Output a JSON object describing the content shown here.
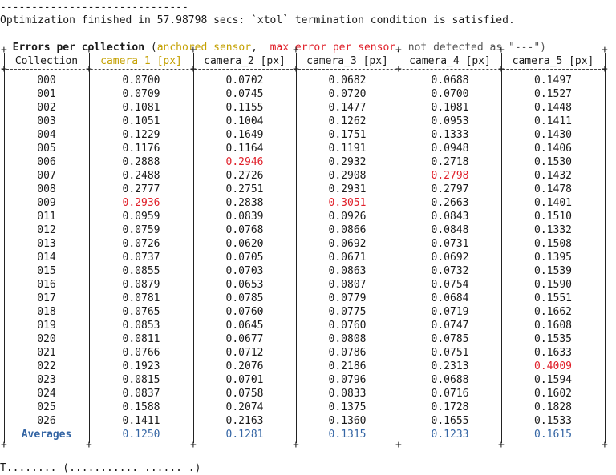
{
  "output": {
    "separator": "------------------------------",
    "status_line": "Optimization finished in 57.98798 secs: `xtol` termination condition is satisfied.",
    "legend": {
      "title": "Errors per collection",
      "open": " (",
      "anchored": "anchored sensor",
      "comma1": ",  ",
      "max_error": "max error per sensor",
      "comma2": ", ",
      "not_detected": "not detected as \"---\")"
    },
    "footer_partial": "T........ (........... ...... .)"
  },
  "table": {
    "columns": [
      "Collection",
      "camera_1 [px]",
      "camera_2 [px]",
      "camera_3 [px]",
      "camera_4 [px]",
      "camera_5 [px]"
    ],
    "anchored_column": 1,
    "rows": [
      {
        "id": "000",
        "v": [
          "0.0700",
          "0.0702",
          "0.0682",
          "0.0688",
          "0.1497"
        ],
        "max": []
      },
      {
        "id": "001",
        "v": [
          "0.0709",
          "0.0745",
          "0.0720",
          "0.0700",
          "0.1527"
        ],
        "max": []
      },
      {
        "id": "002",
        "v": [
          "0.1081",
          "0.1155",
          "0.1477",
          "0.1081",
          "0.1448"
        ],
        "max": []
      },
      {
        "id": "003",
        "v": [
          "0.1051",
          "0.1004",
          "0.1262",
          "0.0953",
          "0.1411"
        ],
        "max": []
      },
      {
        "id": "004",
        "v": [
          "0.1229",
          "0.1649",
          "0.1751",
          "0.1333",
          "0.1430"
        ],
        "max": []
      },
      {
        "id": "005",
        "v": [
          "0.1176",
          "0.1164",
          "0.1191",
          "0.0948",
          "0.1406"
        ],
        "max": []
      },
      {
        "id": "006",
        "v": [
          "0.2888",
          "0.2946",
          "0.2932",
          "0.2718",
          "0.1530"
        ],
        "max": [
          1
        ]
      },
      {
        "id": "007",
        "v": [
          "0.2488",
          "0.2726",
          "0.2908",
          "0.2798",
          "0.1432"
        ],
        "max": [
          3
        ]
      },
      {
        "id": "008",
        "v": [
          "0.2777",
          "0.2751",
          "0.2931",
          "0.2797",
          "0.1478"
        ],
        "max": []
      },
      {
        "id": "009",
        "v": [
          "0.2936",
          "0.2838",
          "0.3051",
          "0.2663",
          "0.1401"
        ],
        "max": [
          0,
          2
        ]
      },
      {
        "id": "011",
        "v": [
          "0.0959",
          "0.0839",
          "0.0926",
          "0.0843",
          "0.1510"
        ],
        "max": []
      },
      {
        "id": "012",
        "v": [
          "0.0759",
          "0.0768",
          "0.0866",
          "0.0848",
          "0.1332"
        ],
        "max": []
      },
      {
        "id": "013",
        "v": [
          "0.0726",
          "0.0620",
          "0.0692",
          "0.0731",
          "0.1508"
        ],
        "max": []
      },
      {
        "id": "014",
        "v": [
          "0.0737",
          "0.0705",
          "0.0671",
          "0.0692",
          "0.1395"
        ],
        "max": []
      },
      {
        "id": "015",
        "v": [
          "0.0855",
          "0.0703",
          "0.0863",
          "0.0732",
          "0.1539"
        ],
        "max": []
      },
      {
        "id": "016",
        "v": [
          "0.0879",
          "0.0653",
          "0.0807",
          "0.0754",
          "0.1590"
        ],
        "max": []
      },
      {
        "id": "017",
        "v": [
          "0.0781",
          "0.0785",
          "0.0779",
          "0.0684",
          "0.1551"
        ],
        "max": []
      },
      {
        "id": "018",
        "v": [
          "0.0765",
          "0.0760",
          "0.0775",
          "0.0719",
          "0.1662"
        ],
        "max": []
      },
      {
        "id": "019",
        "v": [
          "0.0853",
          "0.0645",
          "0.0760",
          "0.0747",
          "0.1608"
        ],
        "max": []
      },
      {
        "id": "020",
        "v": [
          "0.0811",
          "0.0677",
          "0.0808",
          "0.0785",
          "0.1535"
        ],
        "max": []
      },
      {
        "id": "021",
        "v": [
          "0.0766",
          "0.0712",
          "0.0786",
          "0.0751",
          "0.1633"
        ],
        "max": []
      },
      {
        "id": "022",
        "v": [
          "0.1923",
          "0.2076",
          "0.2186",
          "0.2313",
          "0.4009"
        ],
        "max": [
          4
        ]
      },
      {
        "id": "023",
        "v": [
          "0.0815",
          "0.0701",
          "0.0796",
          "0.0688",
          "0.1594"
        ],
        "max": []
      },
      {
        "id": "024",
        "v": [
          "0.0837",
          "0.0758",
          "0.0833",
          "0.0716",
          "0.1602"
        ],
        "max": []
      },
      {
        "id": "025",
        "v": [
          "0.1588",
          "0.2074",
          "0.1375",
          "0.1728",
          "0.1828"
        ],
        "max": []
      },
      {
        "id": "026",
        "v": [
          "0.1411",
          "0.2163",
          "0.1360",
          "0.1655",
          "0.1533"
        ],
        "max": []
      }
    ],
    "averages": {
      "label": "Averages",
      "v": [
        "0.1250",
        "0.1281",
        "0.1315",
        "0.1233",
        "0.1615"
      ]
    }
  },
  "colors": {
    "anchored": "#c4a000",
    "max_error": "#e0202a",
    "averages": "#3465a4",
    "text": "#1a1a1a"
  }
}
